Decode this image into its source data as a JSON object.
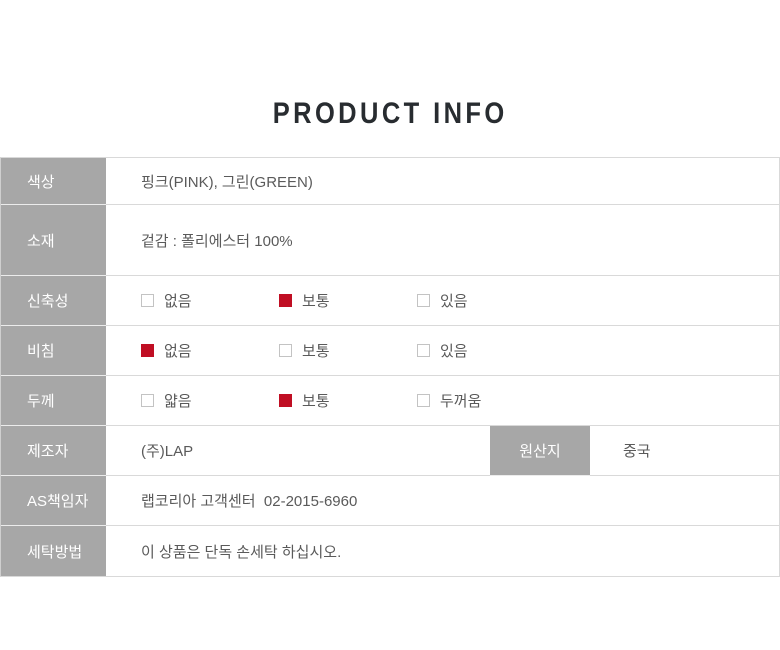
{
  "title": "PRODUCT INFO",
  "colors": {
    "accent_red": "#c00e23",
    "label_bg": "#a7a7a7",
    "label_text": "#ffffff",
    "value_text": "#5a5a5a",
    "border": "#d9d9d9"
  },
  "table": {
    "rows": [
      {
        "label": "색상",
        "value": "핑크(PINK), 그린(GREEN)"
      },
      {
        "label": "소재",
        "value": "겉감 : 폴리에스터 100%"
      },
      {
        "label": "신축성",
        "options": [
          {
            "text": "없음",
            "checked": false
          },
          {
            "text": "보통",
            "checked": true
          },
          {
            "text": "있음",
            "checked": false
          }
        ]
      },
      {
        "label": "비침",
        "options": [
          {
            "text": "없음",
            "checked": true
          },
          {
            "text": "보통",
            "checked": false
          },
          {
            "text": "있음",
            "checked": false
          }
        ]
      },
      {
        "label": "두께",
        "options": [
          {
            "text": "얇음",
            "checked": false
          },
          {
            "text": "보통",
            "checked": true
          },
          {
            "text": "두꺼움",
            "checked": false
          }
        ]
      },
      {
        "label": "제조자",
        "value": "(주)LAP",
        "label2": "원산지",
        "value2": "중국"
      },
      {
        "label": "AS책임자",
        "value": "랩코리아 고객센터  02-2015-6960"
      },
      {
        "label": "세탁방법",
        "value": "이 상품은 단독 손세탁 하십시오."
      }
    ]
  }
}
